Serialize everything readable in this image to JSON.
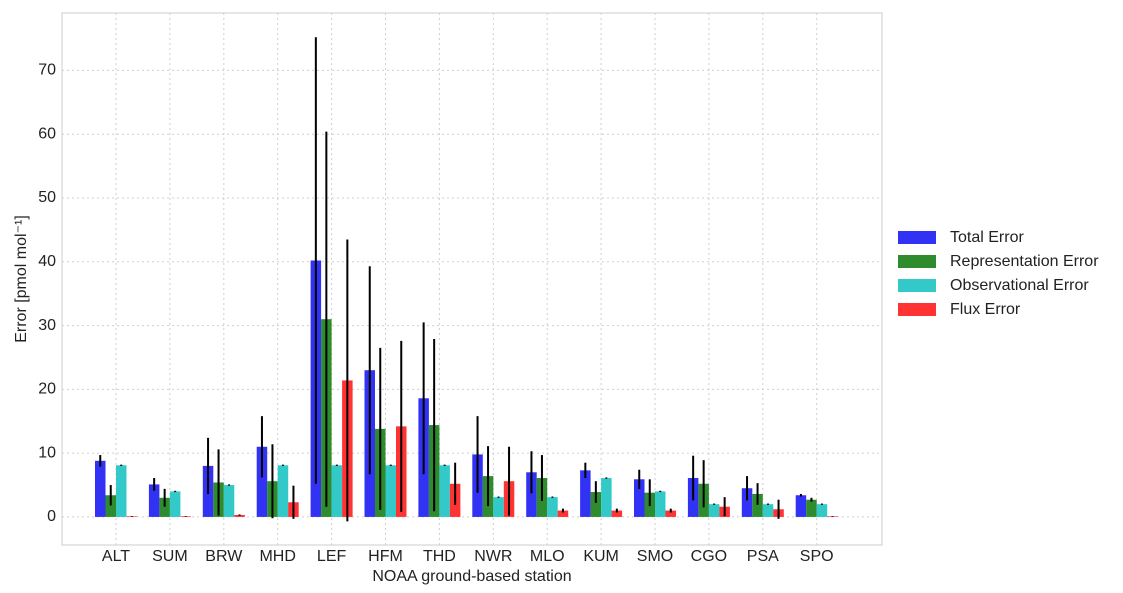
{
  "chart_data": {
    "type": "bar",
    "xlabel": "NOAA ground-based station",
    "ylabel": "Error [pmol mol⁻¹]",
    "categories": [
      "ALT",
      "SUM",
      "BRW",
      "MHD",
      "LEF",
      "HFM",
      "THD",
      "NWR",
      "MLO",
      "KUM",
      "SMO",
      "CGO",
      "PSA",
      "SPO"
    ],
    "series": [
      {
        "name": "Total Error",
        "color": "#3232f5",
        "values": [
          8.8,
          5.1,
          8.0,
          11.0,
          40.2,
          23.0,
          18.6,
          9.8,
          7.0,
          7.3,
          5.9,
          6.1,
          4.5,
          3.4
        ],
        "errors": [
          0.9,
          1.0,
          4.4,
          4.8,
          35.0,
          16.3,
          11.9,
          6.0,
          3.3,
          1.2,
          1.5,
          3.5,
          1.9,
          0.2
        ]
      },
      {
        "name": "Representation Error",
        "color": "#2e8b2e",
        "values": [
          3.4,
          3.0,
          5.4,
          5.6,
          31.0,
          13.8,
          14.4,
          6.4,
          6.1,
          3.9,
          3.8,
          5.2,
          3.6,
          2.7
        ],
        "errors": [
          1.6,
          1.4,
          5.2,
          5.8,
          29.4,
          12.7,
          13.5,
          4.7,
          3.6,
          1.7,
          2.1,
          3.7,
          1.7,
          0.3
        ]
      },
      {
        "name": "Observational Error",
        "color": "#33c9c9",
        "values": [
          8.1,
          4.0,
          5.0,
          8.1,
          8.1,
          8.1,
          8.1,
          3.1,
          3.1,
          6.1,
          4.0,
          2.0,
          2.0,
          2.0
        ],
        "errors": [
          0.1,
          0.1,
          0.1,
          0.1,
          0.1,
          0.1,
          0.1,
          0.1,
          0.1,
          0.1,
          0.1,
          0.1,
          0.1,
          0.1
        ]
      },
      {
        "name": "Flux Error",
        "color": "#ff3333",
        "values": [
          0.1,
          0.1,
          0.3,
          2.3,
          21.4,
          14.2,
          5.2,
          5.6,
          1.0,
          1.0,
          1.0,
          1.6,
          1.2,
          0.1
        ],
        "errors": [
          0.05,
          0.05,
          0.1,
          2.6,
          22.1,
          13.4,
          3.3,
          5.4,
          0.3,
          0.3,
          0.3,
          1.5,
          1.5,
          0.05
        ]
      }
    ],
    "ylim": [
      -4.4,
      79
    ],
    "yticks": [
      0,
      10,
      20,
      30,
      40,
      50,
      60,
      70
    ],
    "grid": true,
    "legend": "right"
  }
}
